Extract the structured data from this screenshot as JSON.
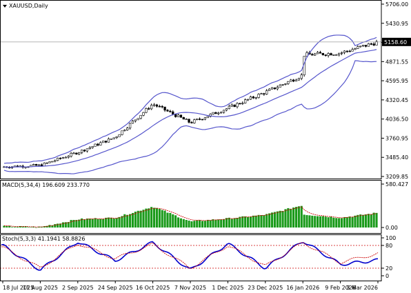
{
  "chart_data": [
    {
      "type": "candlestick",
      "title": "XAUUSD,Daily",
      "y_ticks": [
        "5706.00",
        "5430.95",
        "5158.60",
        "4871.55",
        "4595.95",
        "4320.45",
        "4036.50",
        "3760.95",
        "3485.40",
        "3209.85"
      ],
      "current_price": "5158.60",
      "ylim": [
        3209.85,
        5706.0
      ],
      "bollinger_bands": "shown",
      "close_path": [
        [
          "18 Jul 2025",
          3350
        ],
        [
          "11 Aug 2025",
          3370
        ],
        [
          "2 Sep 2025",
          3560
        ],
        [
          "24 Sep 2025",
          3780
        ],
        [
          "16 Oct 2025",
          4260
        ],
        [
          "7 Nov 2025",
          3990
        ],
        [
          "1 Dec 2025",
          4200
        ],
        [
          "23 Dec 2025",
          4430
        ],
        [
          "16 Jan 2026",
          4680
        ],
        [
          "29 Jan 2026",
          5520
        ],
        [
          "2 Feb 2026",
          4700
        ],
        [
          "9 Feb 2026",
          5000
        ],
        [
          "3 Mar 2026",
          5158.6
        ]
      ]
    },
    {
      "type": "bar",
      "title": "MACD(5,34,4) 196.609 233.770",
      "y_ticks": [
        "580.427",
        "0.00"
      ],
      "ylim": [
        -50,
        600
      ],
      "signal_line": "shown",
      "value_path": [
        [
          "18 Jul 2025",
          15
        ],
        [
          "11 Aug 2025",
          5
        ],
        [
          "2 Sep 2025",
          110
        ],
        [
          "24 Sep 2025",
          130
        ],
        [
          "16 Oct 2025",
          280
        ],
        [
          "7 Nov 2025",
          80
        ],
        [
          "1 Dec 2025",
          120
        ],
        [
          "23 Dec 2025",
          170
        ],
        [
          "16 Jan 2026",
          300
        ],
        [
          "29 Jan 2026",
          590
        ],
        [
          "9 Feb 2026",
          130
        ],
        [
          "3 Mar 2026",
          196.609
        ]
      ]
    },
    {
      "type": "line",
      "title": "Stoch(5,3,3) 41.1941 58.8826",
      "y_ticks": [
        "100",
        "80",
        "20",
        "0"
      ],
      "ylim": [
        0,
        100
      ],
      "levels": [
        80,
        20
      ],
      "series": [
        {
          "color": "#0000cc",
          "x": [
            "18 Jul 2025",
            "11 Aug 2025",
            "2 Sep 2025",
            "24 Sep 2025",
            "16 Oct 2025",
            "7 Nov 2025",
            "1 Dec 2025",
            "23 Dec 2025",
            "16 Jan 2026",
            "9 Feb 2026",
            "3 Mar 2026"
          ],
          "values": [
            80,
            15,
            90,
            40,
            88,
            15,
            85,
            20,
            92,
            30,
            41.1941
          ]
        },
        {
          "color": "#cc0000",
          "x": [
            "18 Jul 2025",
            "11 Aug 2025",
            "2 Sep 2025",
            "24 Sep 2025",
            "16 Oct 2025",
            "7 Nov 2025",
            "1 Dec 2025",
            "23 Dec 2025",
            "16 Jan 2026",
            "9 Feb 2026",
            "3 Mar 2026"
          ],
          "values": [
            75,
            20,
            85,
            45,
            83,
            20,
            80,
            25,
            88,
            35,
            58.8826
          ]
        }
      ]
    }
  ],
  "x_axis_labels": [
    "18 Jul 2025",
    "11 Aug 2025",
    "2 Sep 2025",
    "24 Sep 2025",
    "16 Oct 2025",
    "7 Nov 2025",
    "1 Dec 2025",
    "23 Dec 2025",
    "16 Jan 2026",
    "9 Feb 2026",
    "3 Mar 2026"
  ],
  "colors": {
    "candle_up": "#ffffff",
    "candle_down": "#000000",
    "band": "#5555cc",
    "macd_histogram": "#1a9a1a",
    "macd_signal": "#cc0000",
    "stoch_main": "#0000cc",
    "stoch_signal": "#cc0000",
    "level_line": "#cc0000",
    "price_label_bg": "#000000"
  }
}
